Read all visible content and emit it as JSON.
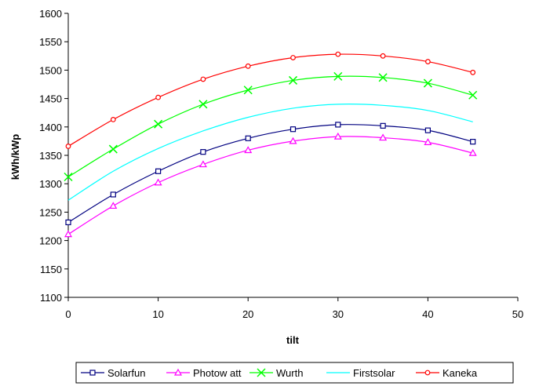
{
  "chart_data": {
    "type": "line",
    "xlabel": "tilt",
    "ylabel": "kWh/kWp",
    "xlim": [
      0,
      50
    ],
    "ylim": [
      1100,
      1600
    ],
    "xticks": [
      0,
      10,
      20,
      30,
      40,
      50
    ],
    "yticks": [
      1100,
      1150,
      1200,
      1250,
      1300,
      1350,
      1400,
      1450,
      1500,
      1550,
      1600
    ],
    "grid": false,
    "legend_position": "bottom",
    "series": [
      {
        "name": "Solarfun",
        "color": "#000080",
        "marker": "square",
        "x": [
          0,
          5,
          10,
          15,
          20,
          25,
          30,
          35,
          40,
          45
        ],
        "y": [
          1232,
          1281,
          1322,
          1356,
          1380,
          1396,
          1404,
          1402,
          1394,
          1374
        ]
      },
      {
        "name": "Photow att",
        "color": "#ff00ff",
        "marker": "triangle",
        "x": [
          0,
          5,
          10,
          15,
          20,
          25,
          30,
          35,
          40,
          45
        ],
        "y": [
          1211,
          1261,
          1302,
          1334,
          1359,
          1375,
          1383,
          1381,
          1373,
          1354
        ]
      },
      {
        "name": "Wurth",
        "color": "#00ff00",
        "marker": "x",
        "x": [
          0,
          5,
          10,
          15,
          20,
          25,
          30,
          35,
          40,
          45
        ],
        "y": [
          1312,
          1361,
          1405,
          1440,
          1465,
          1482,
          1489,
          1487,
          1477,
          1456
        ]
      },
      {
        "name": "Firstsolar",
        "color": "#00ffff",
        "marker": "none",
        "x": [
          0,
          5,
          10,
          15,
          20,
          25,
          30,
          35,
          40,
          45
        ],
        "y": [
          1271,
          1322,
          1362,
          1393,
          1417,
          1433,
          1440,
          1438,
          1429,
          1409
        ]
      },
      {
        "name": "Kaneka",
        "color": "#ff0000",
        "marker": "circle",
        "x": [
          0,
          5,
          10,
          15,
          20,
          25,
          30,
          35,
          40,
          45
        ],
        "y": [
          1366,
          1413,
          1452,
          1484,
          1507,
          1522,
          1528,
          1525,
          1515,
          1496
        ]
      }
    ]
  }
}
